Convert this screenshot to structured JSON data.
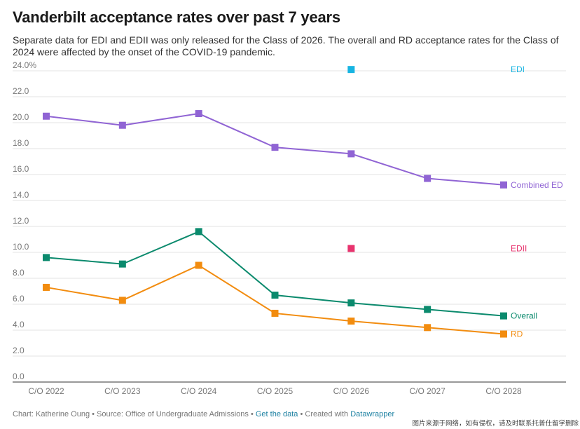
{
  "title": "Vanderbilt acceptance rates over past 7 years",
  "subtitle": "Separate data for EDI and EDII was only released for the Class of 2026. The overall and RD acceptance rates for the Class of 2024 were affected by the onset of the COVID-19 pandemic.",
  "footer": {
    "credit": "Chart: Katherine Oung • Source: Office of Undergraduate Admissions  •",
    "get_data": "Get the data",
    "created": "• Created with",
    "datawrapper": "Datawrapper"
  },
  "watermark": "图片来源于网络，如有侵权，请及时联系托普仕留学删除",
  "chart_data": {
    "type": "line",
    "title": "Vanderbilt acceptance rates over past 7 years",
    "categories": [
      "C/O 2022",
      "C/O 2023",
      "C/O 2024",
      "C/O 2025",
      "C/O 2026",
      "C/O 2027",
      "C/O 2028"
    ],
    "ylim": [
      0,
      24
    ],
    "yticks": [
      "0.0",
      "2.0",
      "4.0",
      "6.0",
      "8.0",
      "10.0",
      "12.0",
      "14.0",
      "16.0",
      "18.0",
      "20.0",
      "22.0",
      "24.0%"
    ],
    "grid": true,
    "series": [
      {
        "name": "Combined ED",
        "color": "#9064d4",
        "values": [
          20.5,
          19.8,
          20.7,
          18.1,
          17.6,
          15.7,
          15.2
        ]
      },
      {
        "name": "Overall",
        "color": "#0b8a6d",
        "values": [
          9.6,
          9.1,
          11.6,
          6.7,
          6.1,
          5.6,
          5.1
        ]
      },
      {
        "name": "RD",
        "color": "#f28c0f",
        "values": [
          7.3,
          6.3,
          9.0,
          5.3,
          4.7,
          4.2,
          3.7
        ]
      },
      {
        "name": "EDI",
        "color": "#17b4e2",
        "values": [
          null,
          null,
          null,
          null,
          24.1,
          null,
          null
        ]
      },
      {
        "name": "EDII",
        "color": "#e8336e",
        "values": [
          null,
          null,
          null,
          null,
          10.3,
          null,
          null
        ]
      }
    ]
  }
}
